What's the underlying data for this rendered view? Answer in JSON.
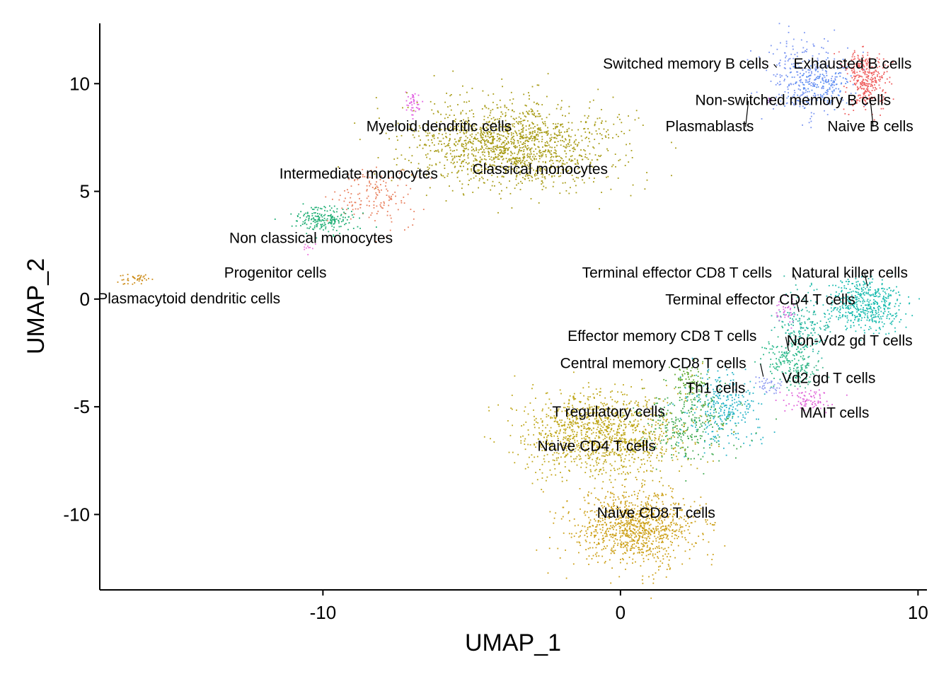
{
  "chart_data": {
    "type": "scatter",
    "title": "",
    "xlabel": "UMAP_1",
    "ylabel": "UMAP_2",
    "xlim": [
      -17.5,
      10.3
    ],
    "ylim": [
      -13.5,
      12.8
    ],
    "x_ticks": [
      -10,
      0,
      10
    ],
    "y_ticks": [
      10,
      5,
      0,
      -5,
      -10
    ],
    "x_tick_labels": [
      "-10",
      "0",
      "10"
    ],
    "y_tick_labels": [
      "10",
      "5",
      "0",
      "-5",
      "-10"
    ],
    "grid": false,
    "legend": "none",
    "clusters": [
      {
        "name": "Switched memory B cells",
        "color": "#7B96F2",
        "x": 6.1,
        "y": 10.3,
        "sx": 0.7,
        "sy": 0.9,
        "n": 260
      },
      {
        "name": "Exhausted B cells",
        "color": "#F26C6C",
        "x": 8.1,
        "y": 10.8,
        "sx": 0.35,
        "sy": 0.35,
        "n": 120
      },
      {
        "name": "Non-switched memory B cells",
        "color": "#5E8FF2",
        "x": 6.8,
        "y": 10.0,
        "sx": 0.6,
        "sy": 0.5,
        "n": 150
      },
      {
        "name": "Naive B cells",
        "color": "#EF5F5F",
        "x": 8.3,
        "y": 9.9,
        "sx": 0.35,
        "sy": 0.55,
        "n": 220
      },
      {
        "name": "Plasmablasts",
        "color": "#8E44AD",
        "x": 5.0,
        "y": 9.2,
        "sx": 0.08,
        "sy": 0.08,
        "n": 6
      },
      {
        "name": "Myeloid dendritic cells",
        "color": "#E25FE2",
        "x": -7.0,
        "y": 9.0,
        "sx": 0.12,
        "sy": 0.35,
        "n": 40
      },
      {
        "name": "Classical monocytes",
        "color": "#A79B14",
        "x": -3.6,
        "y": 7.1,
        "sx": 1.7,
        "sy": 1.0,
        "n": 1500
      },
      {
        "name": "Intermediate monocytes",
        "color": "#E8805E",
        "x": -8.3,
        "y": 4.8,
        "sx": 0.7,
        "sy": 0.7,
        "n": 160
      },
      {
        "name": "Non classical monocytes",
        "color": "#1FAE74",
        "x": -9.9,
        "y": 3.7,
        "sx": 0.5,
        "sy": 0.28,
        "n": 200
      },
      {
        "name": "Progenitor cells",
        "color": "#EE6FDD",
        "x": -10.5,
        "y": 2.4,
        "sx": 0.12,
        "sy": 0.12,
        "n": 10
      },
      {
        "name": "Plasmacytoid dendritic cells",
        "color": "#CC8A15",
        "x": -16.3,
        "y": 0.95,
        "sx": 0.3,
        "sy": 0.12,
        "n": 40
      },
      {
        "name": "Terminal effector CD8 T cells",
        "color": "#2BB7A1",
        "x": 6.2,
        "y": -1.2,
        "sx": 0.45,
        "sy": 0.7,
        "n": 180
      },
      {
        "name": "Natural killer cells",
        "color": "#1CBCB0",
        "x": 8.2,
        "y": -0.3,
        "sx": 0.65,
        "sy": 0.6,
        "n": 500
      },
      {
        "name": "Terminal effector CD4 T cells",
        "color": "#D96DE0",
        "x": 5.6,
        "y": -0.6,
        "sx": 0.2,
        "sy": 0.3,
        "n": 40
      },
      {
        "name": "Effector memory CD8 T cells",
        "color": "#28B886",
        "x": 5.6,
        "y": -2.8,
        "sx": 0.45,
        "sy": 0.6,
        "n": 150
      },
      {
        "name": "Non-Vd2 gd T cells",
        "color": "#44B98F",
        "x": 6.2,
        "y": -3.4,
        "sx": 0.3,
        "sy": 0.35,
        "n": 70
      },
      {
        "name": "Central memory CD8 T cells",
        "color": "#5FAA2E",
        "x": 2.4,
        "y": -3.8,
        "sx": 0.35,
        "sy": 0.4,
        "n": 90
      },
      {
        "name": "Th1 cells",
        "color": "#25B3C6",
        "x": 3.4,
        "y": -5.1,
        "sx": 0.65,
        "sy": 0.8,
        "n": 300
      },
      {
        "name": "Vd2 gd T cells",
        "color": "#8F9BF0",
        "x": 5.0,
        "y": -4.0,
        "sx": 0.25,
        "sy": 0.2,
        "n": 40
      },
      {
        "name": "MAIT cells",
        "color": "#E063D8",
        "x": 6.4,
        "y": -4.7,
        "sx": 0.4,
        "sy": 0.25,
        "n": 80
      },
      {
        "name": "T regulatory cells",
        "color": "#3EA94F",
        "x": 2.2,
        "y": -5.8,
        "sx": 0.8,
        "sy": 0.9,
        "n": 300
      },
      {
        "name": "Naive CD4 T cells",
        "color": "#BFA618",
        "x": -0.6,
        "y": -6.3,
        "sx": 1.3,
        "sy": 1.0,
        "n": 1200
      },
      {
        "name": "Naive CD8 T cells",
        "color": "#CC9F16",
        "x": 0.5,
        "y": -10.6,
        "sx": 1.0,
        "sy": 0.9,
        "n": 1000
      }
    ],
    "labels": [
      {
        "text": "Switched memory B cells",
        "x": 2.2,
        "y": 10.7,
        "lx": 5.25,
        "ly": 10.75,
        "anchor": "middle"
      },
      {
        "text": "Exhausted B cells",
        "x": 7.8,
        "y": 10.7,
        "anchor": "middle"
      },
      {
        "text": "Non-switched memory B cells",
        "x": 5.8,
        "y": 9.0,
        "anchor": "middle"
      },
      {
        "text": "Plasmablasts",
        "x": 3.0,
        "y": 7.8,
        "lx": 4.3,
        "ly": 9.2,
        "anchor": "middle"
      },
      {
        "text": "Naive B cells",
        "x": 8.4,
        "y": 7.8,
        "lx": 8.4,
        "ly": 9.2,
        "anchor": "middle"
      },
      {
        "text": "Myeloid dendritic cells",
        "x": -6.1,
        "y": 7.8,
        "anchor": "middle"
      },
      {
        "text": "Classical monocytes",
        "x": -2.7,
        "y": 5.8,
        "anchor": "middle"
      },
      {
        "text": "Intermediate monocytes",
        "x": -8.8,
        "y": 5.6,
        "anchor": "middle"
      },
      {
        "text": "Non classical monocytes",
        "x": -10.4,
        "y": 2.6,
        "anchor": "middle"
      },
      {
        "text": "Progenitor cells",
        "x": -11.6,
        "y": 1.0,
        "anchor": "middle"
      },
      {
        "text": "Plasmacytoid dendritic cells",
        "x": -14.5,
        "y": -0.2,
        "anchor": "middle"
      },
      {
        "text": "Terminal effector CD8 T cells",
        "x": 1.9,
        "y": 1.0,
        "lx": 5.9,
        "ly": 0.9,
        "anchor": "middle"
      },
      {
        "text": "Natural killer cells",
        "x": 7.7,
        "y": 1.0,
        "lx": 8.3,
        "ly": 0.6,
        "anchor": "middle"
      },
      {
        "text": "Terminal effector CD4 T cells",
        "x": 4.7,
        "y": -0.25,
        "lx": 6.0,
        "ly": -0.6,
        "anchor": "middle"
      },
      {
        "text": "Effector memory CD8 T cells",
        "x": 1.4,
        "y": -1.95,
        "lx": 5.65,
        "ly": -2.4,
        "anchor": "middle"
      },
      {
        "text": "Non-Vd2 gd T cells",
        "x": 7.7,
        "y": -2.15,
        "anchor": "middle"
      },
      {
        "text": "Central memory CD8 T cells",
        "x": 1.1,
        "y": -3.2,
        "lx": 4.8,
        "ly": -3.6,
        "anchor": "middle"
      },
      {
        "text": "Th1 cells",
        "x": 3.2,
        "y": -4.35,
        "anchor": "middle"
      },
      {
        "text": "Vd2 gd T cells",
        "x": 7.0,
        "y": -3.9,
        "anchor": "middle"
      },
      {
        "text": "MAIT cells",
        "x": 7.2,
        "y": -5.5,
        "anchor": "middle"
      },
      {
        "text": "T regulatory cells",
        "x": -0.4,
        "y": -5.45,
        "anchor": "middle"
      },
      {
        "text": "Naive CD4 T cells",
        "x": -0.8,
        "y": -7.05,
        "anchor": "middle"
      },
      {
        "text": "Naive CD8 T cells",
        "x": 1.2,
        "y": -10.15,
        "anchor": "middle"
      }
    ]
  }
}
